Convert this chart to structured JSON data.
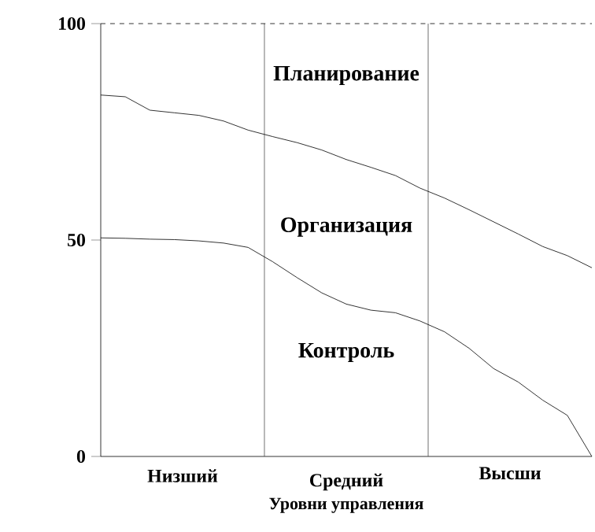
{
  "chart_data": {
    "type": "line",
    "xlabel": "Уровни управления",
    "categories": [
      null,
      null,
      null,
      null,
      null,
      null,
      null,
      null,
      null,
      null,
      null,
      null,
      null,
      null,
      null,
      null,
      null,
      null,
      null,
      null,
      null
    ],
    "ylim": [
      0,
      100
    ],
    "yticks": [
      0,
      50,
      100
    ],
    "tick_labels": "y",
    "series": [
      {
        "color": "#000000",
        "values": [
          83.5,
          83.1,
          80,
          79.4,
          78.8,
          77.5,
          75.4,
          73.9,
          72.5,
          70.8,
          68.6,
          66.8,
          64.9,
          62,
          59.7,
          57,
          54.2,
          51.4,
          48.5,
          46.4,
          43.6
        ]
      },
      {
        "color": "#000000",
        "values": [
          50.5,
          50.4,
          50.2,
          50.1,
          49.8,
          49.3,
          48.3,
          45,
          41.3,
          37.8,
          35.2,
          33.8,
          33.2,
          31.3,
          28.8,
          25,
          20.3,
          17.2,
          13,
          9.5,
          0
        ]
      }
    ],
    "ref_lines": [
      {
        "axis": "y",
        "value": 100,
        "line_style": "dashed"
      }
    ],
    "annotations": [
      "Планирование",
      "Организация",
      "Контроль",
      "Низший",
      "Средний",
      "Высши"
    ],
    "grid": false,
    "marker": "none",
    "line_style": "solid"
  }
}
